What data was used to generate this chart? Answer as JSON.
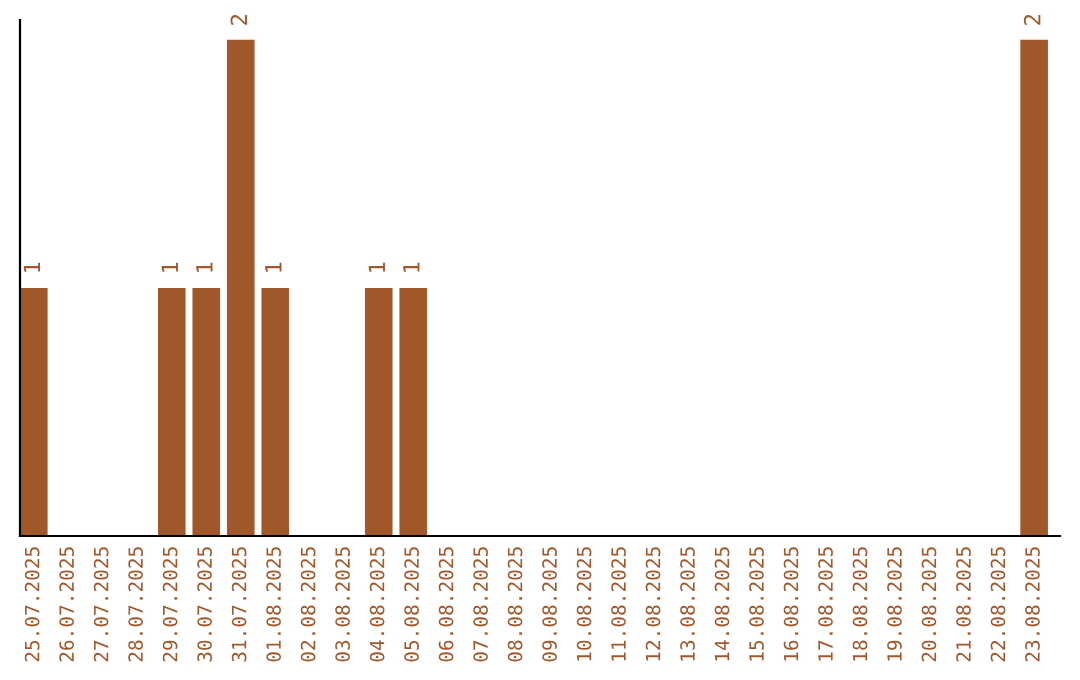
{
  "chart_data": {
    "type": "bar",
    "categories": [
      "25.07.2025",
      "26.07.2025",
      "27.07.2025",
      "28.07.2025",
      "29.07.2025",
      "30.07.2025",
      "31.07.2025",
      "01.08.2025",
      "02.08.2025",
      "03.08.2025",
      "04.08.2025",
      "05.08.2025",
      "06.08.2025",
      "07.08.2025",
      "08.08.2025",
      "09.08.2025",
      "10.08.2025",
      "11.08.2025",
      "12.08.2025",
      "13.08.2025",
      "14.08.2025",
      "15.08.2025",
      "16.08.2025",
      "17.08.2025",
      "18.08.2025",
      "19.08.2025",
      "20.08.2025",
      "21.08.2025",
      "22.08.2025",
      "23.08.2025"
    ],
    "values": [
      1,
      0,
      0,
      0,
      1,
      1,
      2,
      1,
      0,
      0,
      1,
      1,
      0,
      0,
      0,
      0,
      0,
      0,
      0,
      0,
      0,
      0,
      0,
      0,
      0,
      0,
      0,
      0,
      0,
      2
    ],
    "color": "#a0572a",
    "value_labels": [
      "1",
      null,
      null,
      null,
      "1",
      "1",
      "2",
      "1",
      null,
      null,
      "1",
      "1",
      null,
      null,
      null,
      null,
      null,
      null,
      null,
      null,
      null,
      null,
      null,
      null,
      null,
      null,
      null,
      null,
      null,
      "2"
    ],
    "tick_labels": "x",
    "grid": false,
    "legend": false
  }
}
